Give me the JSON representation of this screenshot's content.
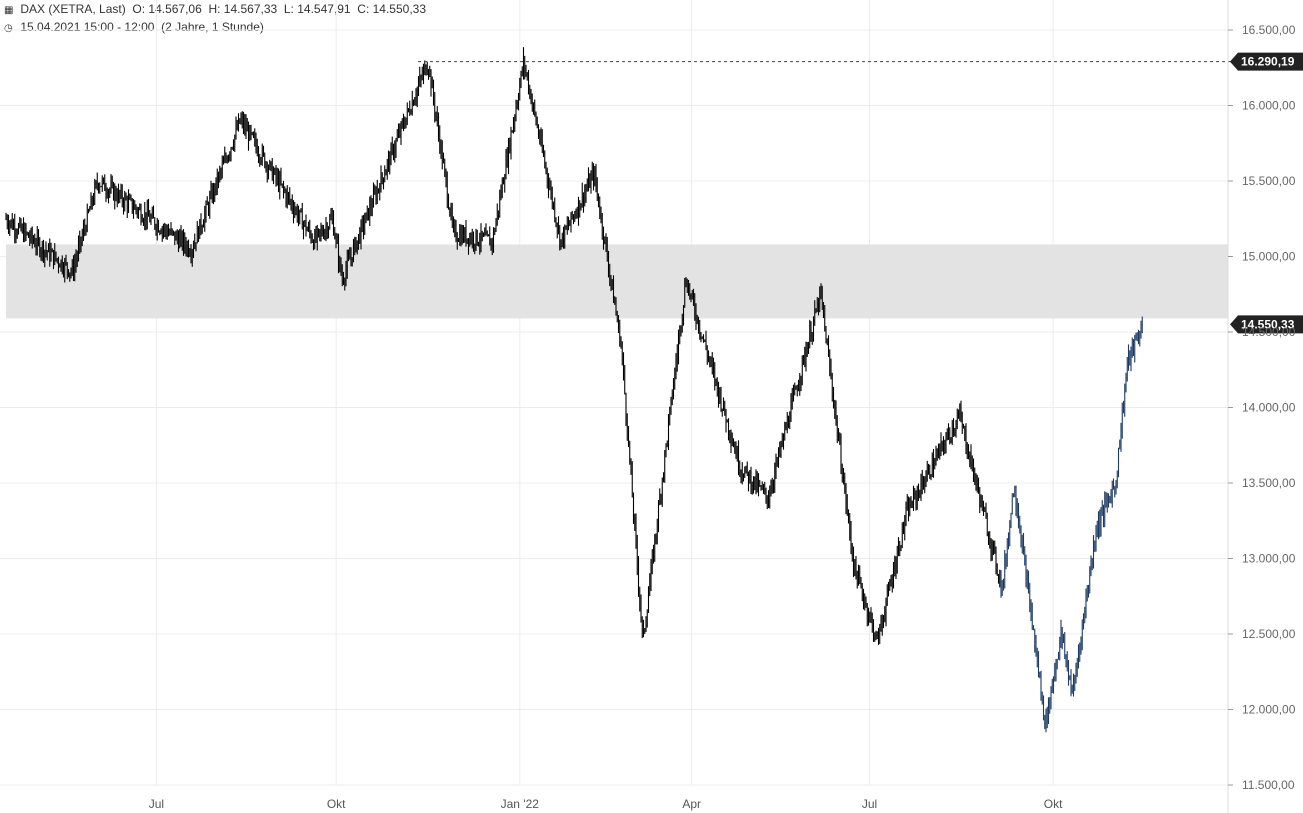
{
  "header": {
    "instrument": "DAX (XETRA, Last)",
    "open_label": "O:",
    "open": "14.567,06",
    "high_label": "H:",
    "high": "14.567,33",
    "low_label": "L:",
    "low": "14.547,91",
    "close_label": "C:",
    "close": "14.550,33",
    "range": "15.04.2021 15:00 - 12:00",
    "period": "(2 Jahre, 1 Stunde)",
    "icons": {
      "instrument": "candlestick-icon",
      "range": "clock-icon"
    }
  },
  "colors": {
    "candles": "#000000",
    "recent_candles": "#1e3a5f",
    "zone": "#e3e3e3",
    "grid": "#ececec",
    "tag_bg": "#222222"
  },
  "chart_data": {
    "type": "candlestick",
    "x_labels": [
      "Jul",
      "Okt",
      "Jan '22",
      "Apr",
      "Jul",
      "Okt"
    ],
    "y_ticks": [
      "16.500,00",
      "16.000,00",
      "15.500,00",
      "15.000,00",
      "14.500,00",
      "14.000,00",
      "13.500,00",
      "13.000,00",
      "12.500,00",
      "12.000,00",
      "11.500,00"
    ],
    "ylim": [
      11500,
      16500
    ],
    "grid": true,
    "price_tags": [
      {
        "value": 16290.19,
        "label": "16.290,19",
        "dashed_line": true
      },
      {
        "value": 14550.33,
        "label": "14.550,33",
        "dashed_line": false
      }
    ],
    "zones": [
      {
        "from": 14590,
        "to": 15080
      }
    ],
    "series": [
      {
        "x": [
          "2021-04-15",
          "2021-05-19",
          "2021-06-01",
          "2021-07-19",
          "2021-08-13",
          "2021-09-20",
          "2021-09-29",
          "2021-10-04",
          "2021-11-17",
          "2021-11-30",
          "2021-12-20",
          "2022-01-05",
          "2022-01-24",
          "2022-02-10",
          "2022-02-24",
          "2022-03-07",
          "2022-03-29",
          "2022-04-26",
          "2022-05-10",
          "2022-06-06",
          "2022-06-23",
          "2022-07-05",
          "2022-07-20",
          "2022-08-16",
          "2022-09-07",
          "2022-09-13",
          "2022-09-29",
          "2022-10-07",
          "2022-10-13",
          "2022-10-25",
          "2022-11-04",
          "2022-11-10",
          "2022-11-18"
        ],
        "close": [
          15250,
          14900,
          15500,
          15050,
          15900,
          15100,
          15250,
          14850,
          16290,
          15150,
          15100,
          16290,
          15100,
          15550,
          14400,
          12450,
          14850,
          13600,
          13400,
          14750,
          12950,
          12450,
          13300,
          13950,
          12800,
          13500,
          11900,
          12500,
          12100,
          13200,
          13500,
          14300,
          14550
        ]
      }
    ]
  }
}
